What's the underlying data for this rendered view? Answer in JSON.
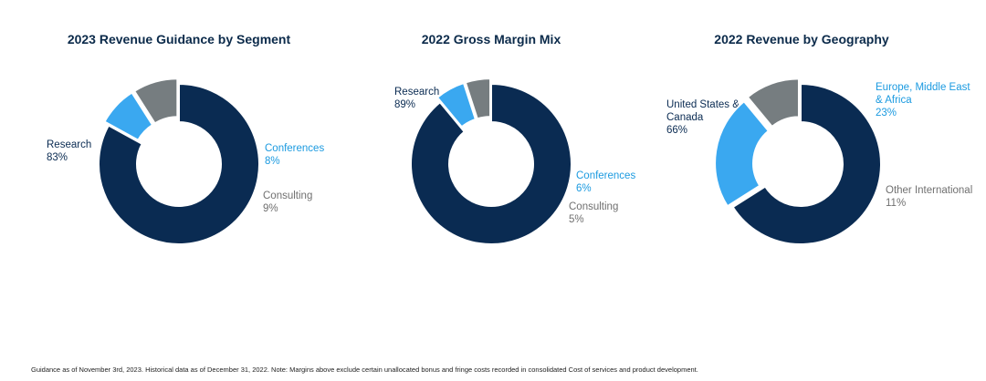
{
  "colors": {
    "research": "#0a2b52",
    "conferences": "#3aa8f0",
    "consulting": "#767d80",
    "label_dark": "#0a2b52",
    "label_blue": "#1b9ae0",
    "label_gray": "#707070",
    "title": "#0b2a4a"
  },
  "chart_data": [
    {
      "type": "pie",
      "id": "segment",
      "title": "2023 Revenue Guidance by Segment",
      "slices": [
        {
          "name": "Research",
          "label_lines": [
            "Research"
          ],
          "value": 83,
          "percent_text": "83%",
          "color_key": "research",
          "label_color_key": "label_dark"
        },
        {
          "name": "Conferences",
          "label_lines": [
            "Conferences"
          ],
          "value": 8,
          "percent_text": "8%",
          "color_key": "conferences",
          "label_color_key": "label_blue"
        },
        {
          "name": "Consulting",
          "label_lines": [
            "Consulting"
          ],
          "value": 9,
          "percent_text": "9%",
          "color_key": "consulting",
          "label_color_key": "label_gray"
        }
      ]
    },
    {
      "type": "pie",
      "id": "margin",
      "title": "2022 Gross Margin Mix",
      "slices": [
        {
          "name": "Research",
          "label_lines": [
            "Research"
          ],
          "value": 89,
          "percent_text": "89%",
          "color_key": "research",
          "label_color_key": "label_dark"
        },
        {
          "name": "Conferences",
          "label_lines": [
            "Conferences"
          ],
          "value": 6,
          "percent_text": "6%",
          "color_key": "conferences",
          "label_color_key": "label_blue"
        },
        {
          "name": "Consulting",
          "label_lines": [
            "Consulting"
          ],
          "value": 5,
          "percent_text": "5%",
          "color_key": "consulting",
          "label_color_key": "label_gray"
        }
      ]
    },
    {
      "type": "pie",
      "id": "geography",
      "title": "2022 Revenue by Geography",
      "slices": [
        {
          "name": "United States & Canada",
          "label_lines": [
            "United States &",
            "Canada"
          ],
          "value": 66,
          "percent_text": "66%",
          "color_key": "research",
          "label_color_key": "label_dark"
        },
        {
          "name": "Europe, Middle East & Africa",
          "label_lines": [
            "Europe, Middle East",
            "& Africa"
          ],
          "value": 23,
          "percent_text": "23%",
          "color_key": "conferences",
          "label_color_key": "label_blue"
        },
        {
          "name": "Other International",
          "label_lines": [
            "Other International"
          ],
          "value": 11,
          "percent_text": "11%",
          "color_key": "consulting",
          "label_color_key": "label_gray"
        }
      ]
    }
  ],
  "footnote": "Guidance as of November 3rd, 2023. Historical data as of December 31, 2022. Note: Margins above exclude certain unallocated bonus and fringe costs recorded in consolidated Cost of services and product development."
}
